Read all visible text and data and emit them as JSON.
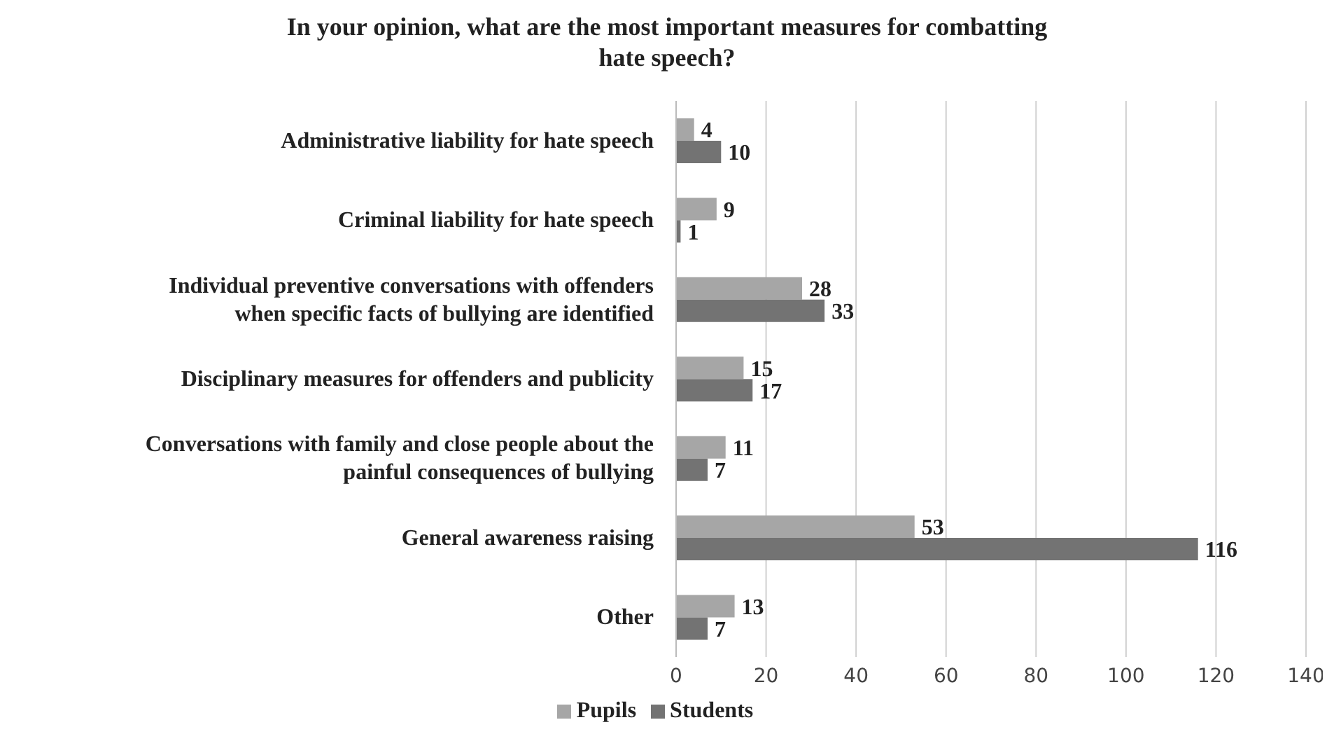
{
  "chart_data": {
    "type": "bar",
    "orientation": "horizontal",
    "title": "In your opinion, what are the most important measures for combatting hate speech?",
    "categories": [
      "Administrative liability for hate speech",
      "Criminal liability for hate speech",
      "Individual preventive conversations with offenders when specific facts of bullying are identified",
      "Disciplinary measures for offenders and publicity",
      "Conversations with family and close people about the painful consequences of bullying",
      "General awareness raising",
      "Other"
    ],
    "series": [
      {
        "name": "Pupils",
        "color": "#a6a6a6",
        "values": [
          4,
          9,
          28,
          15,
          11,
          53,
          13
        ]
      },
      {
        "name": "Students",
        "color": "#737373",
        "values": [
          10,
          1,
          33,
          17,
          7,
          116,
          7
        ]
      }
    ],
    "xlim": [
      0,
      140
    ],
    "xticks": [
      0,
      20,
      40,
      60,
      80,
      100,
      120,
      140
    ],
    "grid": "x",
    "legend": "bottom",
    "data_labels": true
  }
}
